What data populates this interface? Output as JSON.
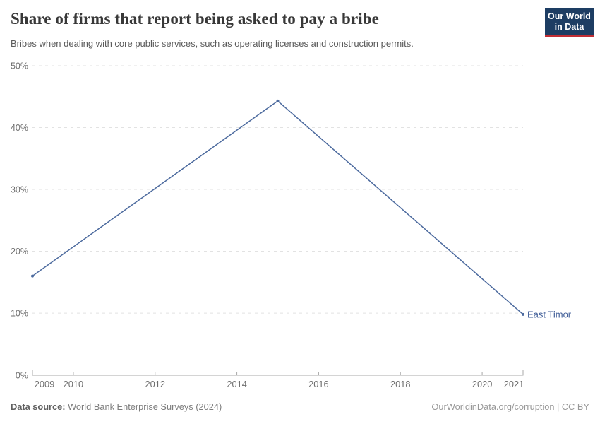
{
  "header": {
    "title": "Share of firms that report being asked to pay a bribe",
    "subtitle": "Bribes when dealing with core public services, such as operating licenses and construction permits.",
    "logo": {
      "line1": "Our World",
      "line2": "in Data",
      "bg_color": "#1d3d63",
      "accent_color": "#c12e34"
    }
  },
  "chart_data": {
    "type": "line",
    "title": "Share of firms that report being asked to pay a bribe",
    "xlabel": "",
    "ylabel": "",
    "xlim": [
      2009,
      2021
    ],
    "ylim": [
      0,
      50
    ],
    "yticks": [
      0,
      10,
      20,
      30,
      40,
      50
    ],
    "ytick_suffix": "%",
    "xticks": [
      2009,
      2010,
      2012,
      2014,
      2016,
      2018,
      2020,
      2021
    ],
    "grid": "dashed horizontal",
    "legend_position": "end-of-line label",
    "series": [
      {
        "name": "East Timor",
        "color": "#4c6a9e",
        "label_color": "#3d5b96",
        "x": [
          2009,
          2015,
          2021
        ],
        "values": [
          16,
          44.3,
          9.8
        ]
      }
    ],
    "gridline_color": "#e2e2e2",
    "axis_color": "#a8a8a8",
    "tick_label_color": "#6e6e6e"
  },
  "footer": {
    "source_label": "Data source:",
    "source_text": " World Bank Enterprise Surveys (2024)",
    "rights": "OurWorldinData.org/corruption | CC BY"
  }
}
